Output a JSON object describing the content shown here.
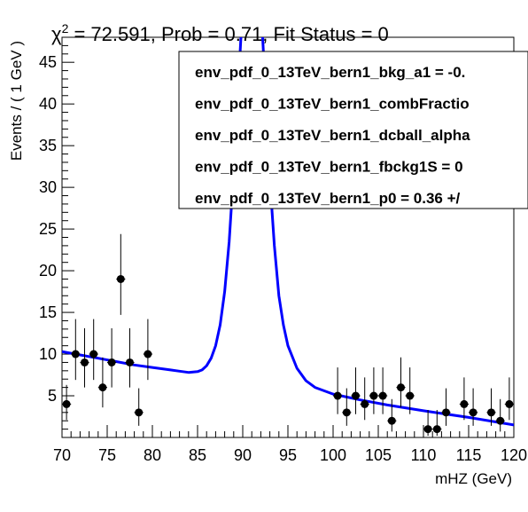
{
  "chart_data": {
    "type": "scatter",
    "title": "χ² = 72.591, Prob = 0.71, Fit Status = 0",
    "title_parts": {
      "chi": "χ",
      "sup": "2",
      "rest": " = 72.591, Prob = 0.71, Fit Status = 0"
    },
    "xlabel": "mHZ (GeV)",
    "ylabel": "Events / ( 1 GeV )",
    "xlim": [
      70,
      120
    ],
    "ylim": [
      0,
      48
    ],
    "x_major_ticks": [
      70,
      75,
      80,
      85,
      90,
      95,
      100,
      105,
      110,
      115,
      120
    ],
    "x_tick_labels": [
      "70",
      "75",
      "80",
      "85",
      "90",
      "95",
      "100",
      "105",
      "110",
      "115",
      "120"
    ],
    "y_major_ticks": [
      5,
      10,
      15,
      20,
      25,
      30,
      35,
      40,
      45
    ],
    "y_tick_labels": [
      "5",
      "10",
      "15",
      "20",
      "25",
      "30",
      "35",
      "40",
      "45"
    ],
    "series": [
      {
        "name": "data",
        "kind": "points_with_errors",
        "color": "#000000",
        "points": [
          {
            "x": 70.5,
            "y": 4,
            "err_up": 2.3,
            "err_down": 1.9
          },
          {
            "x": 71.5,
            "y": 10,
            "err_up": 4.2,
            "err_down": 3.1
          },
          {
            "x": 72.5,
            "y": 9,
            "err_up": 4.1,
            "err_down": 3.0
          },
          {
            "x": 73.5,
            "y": 10,
            "err_up": 4.2,
            "err_down": 3.1
          },
          {
            "x": 74.5,
            "y": 6,
            "err_up": 3.6,
            "err_down": 2.4
          },
          {
            "x": 75.5,
            "y": 9,
            "err_up": 4.1,
            "err_down": 3.0
          },
          {
            "x": 76.5,
            "y": 19,
            "err_up": 5.4,
            "err_down": 4.3
          },
          {
            "x": 77.5,
            "y": 9,
            "err_up": 4.1,
            "err_down": 3.0
          },
          {
            "x": 78.5,
            "y": 3,
            "err_up": 2.9,
            "err_down": 1.6
          },
          {
            "x": 79.5,
            "y": 10,
            "err_up": 4.2,
            "err_down": 3.1
          },
          {
            "x": 100.5,
            "y": 5,
            "err_up": 3.4,
            "err_down": 2.2
          },
          {
            "x": 101.5,
            "y": 3,
            "err_up": 2.9,
            "err_down": 1.6
          },
          {
            "x": 102.5,
            "y": 5,
            "err_up": 3.4,
            "err_down": 2.2
          },
          {
            "x": 103.5,
            "y": 4,
            "err_up": 3.2,
            "err_down": 1.9
          },
          {
            "x": 104.5,
            "y": 5,
            "err_up": 3.4,
            "err_down": 2.2
          },
          {
            "x": 105.5,
            "y": 5,
            "err_up": 3.4,
            "err_down": 2.2
          },
          {
            "x": 106.5,
            "y": 2,
            "err_up": 2.6,
            "err_down": 1.3
          },
          {
            "x": 107.5,
            "y": 6,
            "err_up": 3.6,
            "err_down": 2.4
          },
          {
            "x": 108.5,
            "y": 5,
            "err_up": 3.4,
            "err_down": 2.2
          },
          {
            "x": 110.5,
            "y": 1,
            "err_up": 2.3,
            "err_down": 0.8
          },
          {
            "x": 111.5,
            "y": 1,
            "err_up": 2.3,
            "err_down": 0.8
          },
          {
            "x": 112.5,
            "y": 3,
            "err_up": 2.9,
            "err_down": 1.6
          },
          {
            "x": 114.5,
            "y": 4,
            "err_up": 3.2,
            "err_down": 1.9
          },
          {
            "x": 115.5,
            "y": 3,
            "err_up": 2.9,
            "err_down": 1.6
          },
          {
            "x": 117.5,
            "y": 3,
            "err_up": 2.9,
            "err_down": 1.6
          },
          {
            "x": 118.5,
            "y": 2,
            "err_up": 2.6,
            "err_down": 1.3
          },
          {
            "x": 119.5,
            "y": 4,
            "err_up": 3.2,
            "err_down": 1.9
          }
        ]
      },
      {
        "name": "fit",
        "kind": "line",
        "color": "#0000ff",
        "points": [
          [
            70,
            10.3
          ],
          [
            72,
            9.9
          ],
          [
            74,
            9.5
          ],
          [
            76,
            9.1
          ],
          [
            78,
            8.7
          ],
          [
            80,
            8.4
          ],
          [
            82,
            8.1
          ],
          [
            83,
            7.95
          ],
          [
            84,
            7.8
          ],
          [
            85,
            7.9
          ],
          [
            85.5,
            8.1
          ],
          [
            86,
            8.6
          ],
          [
            86.5,
            9.5
          ],
          [
            87,
            11.0
          ],
          [
            87.5,
            13.5
          ],
          [
            88,
            17.5
          ],
          [
            88.5,
            23.5
          ],
          [
            89,
            32.0
          ],
          [
            89.5,
            42.0
          ],
          [
            90,
            52.0
          ],
          [
            92,
            52.0
          ],
          [
            92.5,
            42.0
          ],
          [
            93,
            31.0
          ],
          [
            93.5,
            23.0
          ],
          [
            94,
            17.0
          ],
          [
            94.5,
            13.5
          ],
          [
            95,
            11.0
          ],
          [
            96,
            8.3
          ],
          [
            97,
            6.8
          ],
          [
            98,
            6.0
          ],
          [
            100,
            5.2
          ],
          [
            103,
            4.5
          ],
          [
            106,
            3.9
          ],
          [
            110,
            3.2
          ],
          [
            115,
            2.4
          ],
          [
            120,
            1.5
          ]
        ]
      }
    ],
    "legend": {
      "placement": "top-right",
      "entries": [
        "env_pdf_0_13TeV_bern1_bkg_a1 = -0.",
        "env_pdf_0_13TeV_bern1_combFractio",
        "env_pdf_0_13TeV_bern1_dcball_alpha",
        "env_pdf_0_13TeV_bern1_fbckg1S =  0",
        "env_pdf_0_13TeV_bern1_p0 =  0.36 +/"
      ]
    }
  }
}
